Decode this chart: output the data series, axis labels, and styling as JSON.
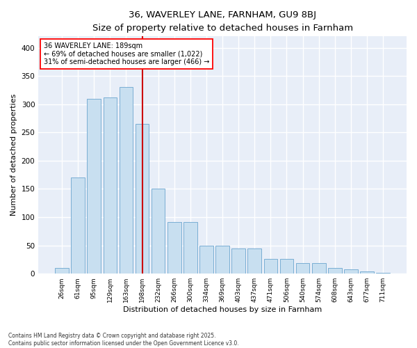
{
  "title1": "36, WAVERLEY LANE, FARNHAM, GU9 8BJ",
  "title2": "Size of property relative to detached houses in Farnham",
  "xlabel": "Distribution of detached houses by size in Farnham",
  "ylabel": "Number of detached properties",
  "bar_color": "#c8dff0",
  "bar_edge_color": "#7aaed4",
  "vline_color": "#cc0000",
  "annotation_line1": "36 WAVERLEY LANE: 189sqm",
  "annotation_line2": "← 69% of detached houses are smaller (1,022)",
  "annotation_line3": "31% of semi-detached houses are larger (466) →",
  "footer1": "Contains HM Land Registry data © Crown copyright and database right 2025.",
  "footer2": "Contains public sector information licensed under the Open Government Licence v3.0.",
  "categories": [
    "26sqm",
    "61sqm",
    "95sqm",
    "129sqm",
    "163sqm",
    "198sqm",
    "232sqm",
    "266sqm",
    "300sqm",
    "334sqm",
    "369sqm",
    "403sqm",
    "437sqm",
    "471sqm",
    "506sqm",
    "540sqm",
    "574sqm",
    "608sqm",
    "643sqm",
    "677sqm",
    "711sqm"
  ],
  "values": [
    10,
    170,
    310,
    312,
    330,
    265,
    150,
    92,
    92,
    50,
    50,
    44,
    44,
    26,
    26,
    19,
    19,
    10,
    8,
    4,
    2
  ],
  "vline_index": 5,
  "ylim": [
    0,
    420
  ],
  "yticks": [
    0,
    50,
    100,
    150,
    200,
    250,
    300,
    350,
    400
  ],
  "fig_bg_color": "#ffffff",
  "plot_bg_color": "#e8eef8",
  "grid_color": "#ffffff",
  "title_fontsize": 11,
  "subtitle_fontsize": 9
}
